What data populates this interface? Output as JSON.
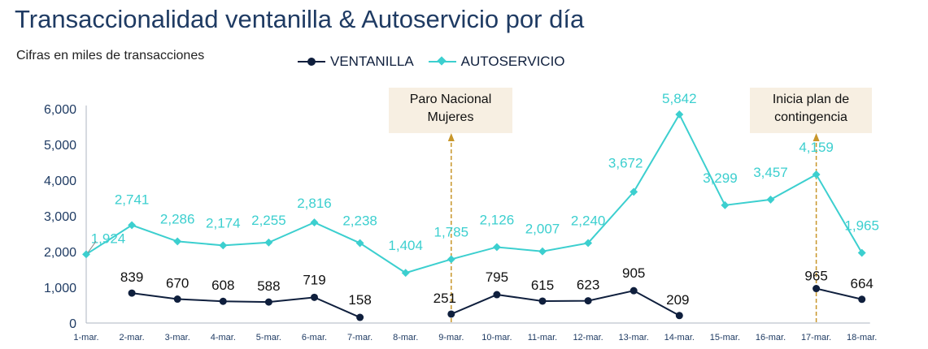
{
  "title": "Transaccionalidad ventanilla & Autoservicio por día",
  "subtitle": "Cifras en miles de transacciones",
  "legend": {
    "ventanilla": "VENTANILLA",
    "autoservicio": "AUTOSERVICIO"
  },
  "colors": {
    "ventanilla": "#0f1f3d",
    "autoservicio": "#3ccfcf",
    "annotation_line": "#c8962a",
    "annotation_box": "#f7efe2"
  },
  "annotations": [
    {
      "text_line1": "Paro Nacional",
      "text_line2": "Mujeres",
      "at": "9-mar."
    },
    {
      "text_line1": "Inicia plan de",
      "text_line2": "contingencia",
      "at": "17-mar."
    }
  ],
  "chart_data": {
    "type": "line",
    "title": "Transaccionalidad ventanilla & Autoservicio por día",
    "subtitle": "Cifras en miles de transacciones",
    "categories": [
      "1-mar.",
      "2-mar.",
      "3-mar.",
      "4-mar.",
      "5-mar.",
      "6-mar.",
      "7-mar.",
      "8-mar.",
      "9-mar.",
      "10-mar.",
      "11-mar.",
      "12-mar.",
      "13-mar.",
      "14-mar.",
      "15-mar.",
      "16-mar.",
      "17-mar.",
      "18-mar."
    ],
    "ylim": [
      0,
      6000
    ],
    "yticks": [
      "0",
      "1,000",
      "2,000",
      "3,000",
      "4,000",
      "5,000",
      "6,000"
    ],
    "legend_position": "top",
    "grid": false,
    "series": [
      {
        "name": "VENTANILLA",
        "values": [
          null,
          839,
          670,
          608,
          588,
          719,
          158,
          null,
          251,
          795,
          615,
          623,
          905,
          209,
          null,
          null,
          965,
          664
        ],
        "labels": [
          "",
          "839",
          "670",
          "608",
          "588",
          "719",
          "158",
          "",
          "251",
          "795",
          "615",
          "623",
          "905",
          "209",
          "",
          "",
          "965",
          "664"
        ]
      },
      {
        "name": "AUTOSERVICIO",
        "values": [
          1924,
          2741,
          2286,
          2174,
          2255,
          2816,
          2238,
          1404,
          1785,
          2126,
          2007,
          2240,
          3672,
          5842,
          3299,
          3457,
          4159,
          1965
        ],
        "labels": [
          "1,924",
          "2,741",
          "2,286",
          "2,174",
          "2,255",
          "2,816",
          "2,238",
          "1,404",
          "1,785",
          "2,126",
          "2,007",
          "2,240",
          "3,672",
          "5,842",
          "3,299",
          "3,457",
          "4,159",
          "1,965"
        ]
      }
    ]
  }
}
